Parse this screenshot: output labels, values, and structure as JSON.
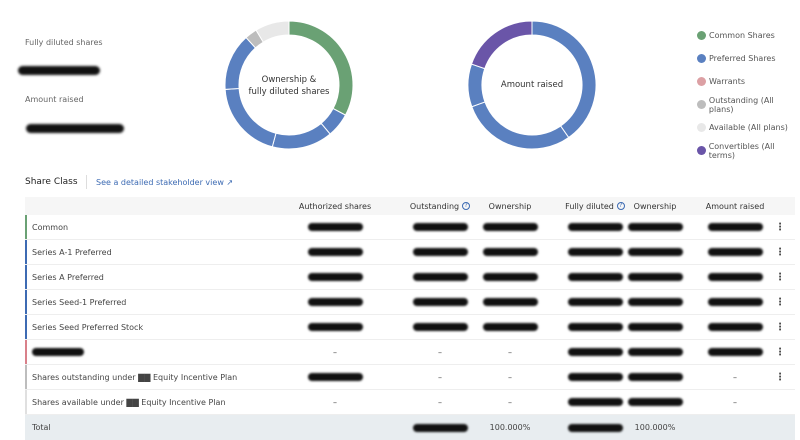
{
  "summary": {
    "fully_diluted_label": "Fully diluted shares",
    "amount_raised_label": "Amount raised"
  },
  "charts": {
    "ownership": {
      "center_label_line1": "Ownership &",
      "center_label_line2": "fully diluted shares",
      "segments": [
        {
          "series": "Common Shares",
          "pct": 32.8,
          "color": "#6aa174"
        },
        {
          "series": "Preferred Shares",
          "pct": 6.1,
          "color": "#5a80c0"
        },
        {
          "series": "Preferred Shares",
          "pct": 15.3,
          "color": "#5a80c0"
        },
        {
          "series": "Preferred Shares",
          "pct": 19.7,
          "color": "#5a80c0"
        },
        {
          "series": "Preferred Shares",
          "pct": 14.4,
          "color": "#5a80c0"
        },
        {
          "series": "Outstanding (All plans)",
          "pct": 3.1,
          "color": "#bdbdbd"
        },
        {
          "series": "Available (All plans)",
          "pct": 8.6,
          "color": "#e8e8e8"
        }
      ]
    },
    "amount": {
      "center_label": "Amount raised",
      "segments": [
        {
          "series": "Preferred Shares",
          "pct": 40.3,
          "color": "#5a80c0"
        },
        {
          "series": "Preferred Shares",
          "pct": 29.2,
          "color": "#5a80c0"
        },
        {
          "series": "Preferred Shares",
          "pct": 10.8,
          "color": "#5a80c0"
        },
        {
          "series": "Convertibles (All terms)",
          "pct": 19.7,
          "color": "#6a55a8"
        }
      ]
    }
  },
  "legend": [
    {
      "label": "Common Shares",
      "color": "#6aa174"
    },
    {
      "label": "Preferred Shares",
      "color": "#5a80c0"
    },
    {
      "label": "Warrants",
      "color": "#dca0a4"
    },
    {
      "label": "Outstanding (All plans)",
      "color": "#bdbdbd"
    },
    {
      "label": "Available (All plans)",
      "color": "#e8e8e8"
    },
    {
      "label": "Convertibles (All terms)",
      "color": "#6a55a8"
    }
  ],
  "share_class": {
    "title": "Share Class",
    "link": "See a detailed stakeholder view ↗"
  },
  "table": {
    "headers": [
      "Authorized shares",
      "Outstanding",
      "Ownership",
      "Fully diluted",
      "Ownership",
      "Amount raised"
    ],
    "rows": [
      {
        "name": "Common",
        "color": "#6aa174",
        "cells": [
          "r",
          "r",
          "r",
          "r",
          "r",
          "r"
        ],
        "menu": true
      },
      {
        "name": "Series A-1 Preferred",
        "color": "#3d6bb3",
        "cells": [
          "r",
          "r",
          "r",
          "r",
          "r",
          "r"
        ],
        "menu": true
      },
      {
        "name": "Series A Preferred",
        "color": "#3d6bb3",
        "cells": [
          "r",
          "r",
          "r",
          "r",
          "r",
          "r"
        ],
        "menu": true
      },
      {
        "name": "Series Seed-1 Preferred",
        "color": "#3d6bb3",
        "cells": [
          "r",
          "r",
          "r",
          "r",
          "r",
          "r"
        ],
        "menu": true
      },
      {
        "name": "Series Seed Preferred Stock",
        "color": "#3d6bb3",
        "cells": [
          "r",
          "r",
          "r",
          "r",
          "r",
          "r"
        ],
        "menu": true
      },
      {
        "name": "",
        "color": "#d9808a",
        "cells": [
          "–",
          "–",
          "–",
          "r",
          "r",
          "r"
        ],
        "menu": true
      },
      {
        "name": "Shares outstanding under ▇▇ Equity Incentive Plan",
        "color": "#bdbdbd",
        "cells": [
          "r",
          "–",
          "–",
          "r",
          "r",
          "–"
        ],
        "menu": true
      },
      {
        "name": "Shares available under ▇▇ Equity Incentive Plan",
        "color": "#e0e0e0",
        "cells": [
          "–",
          "–",
          "–",
          "r",
          "r",
          "–"
        ],
        "menu": false
      }
    ],
    "total": {
      "name": "Total",
      "cells": [
        "",
        "r",
        "100.000%",
        "r",
        "100.000%",
        ""
      ]
    },
    "menu_glyph": "⋮",
    "help_glyph": "?"
  }
}
